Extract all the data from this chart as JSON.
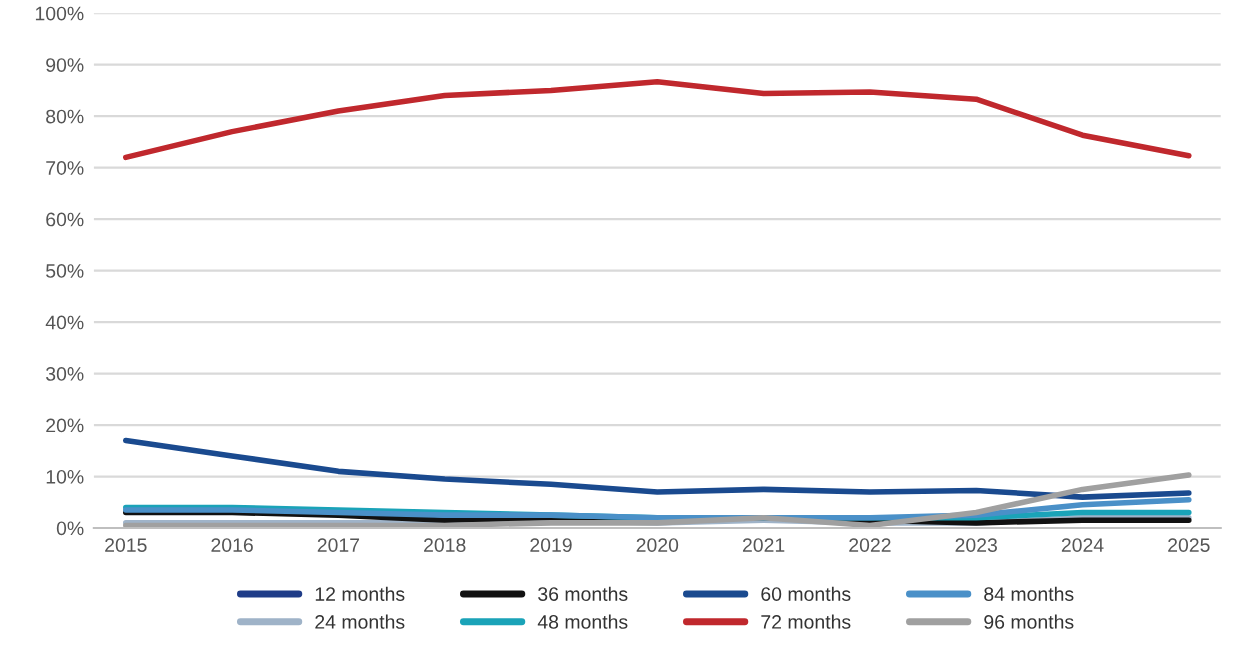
{
  "chart_data": {
    "type": "line",
    "x": [
      2015,
      2016,
      2017,
      2018,
      2019,
      2020,
      2021,
      2022,
      2023,
      2024,
      2025
    ],
    "xlim": [
      2014.7,
      2025.3
    ],
    "xticks": [
      2015,
      2016,
      2017,
      2018,
      2019,
      2020,
      2021,
      2022,
      2023,
      2024,
      2025
    ],
    "ylim": [
      0,
      100
    ],
    "yticks": [
      {
        "value": 0,
        "label": "0%"
      },
      {
        "value": 10,
        "label": "10%"
      },
      {
        "value": 20,
        "label": "20%"
      },
      {
        "value": 30,
        "label": "30%"
      },
      {
        "value": 40,
        "label": "40%"
      },
      {
        "value": 50,
        "label": "50%"
      },
      {
        "value": 60,
        "label": "60%"
      },
      {
        "value": 70,
        "label": "70%"
      },
      {
        "value": 80,
        "label": "80%"
      },
      {
        "value": 90,
        "label": "90%"
      },
      {
        "value": 100,
        "label": "100%"
      }
    ],
    "grid": "y",
    "legend": "bottom",
    "line_style": "solid",
    "series": [
      {
        "name": "12 months",
        "color": "#1f3c88",
        "values": [
          null,
          null,
          null,
          null,
          null,
          null,
          null,
          null,
          null,
          null,
          null
        ]
      },
      {
        "name": "24 months",
        "color": "#9fb3c8",
        "values": [
          1,
          1,
          1,
          1,
          1.5,
          1,
          1.5,
          1,
          1,
          2,
          2
        ]
      },
      {
        "name": "36 months",
        "color": "#111111",
        "values": [
          3,
          3,
          2.5,
          1.5,
          2,
          2,
          2,
          1.5,
          1,
          1.5,
          1.5
        ]
      },
      {
        "name": "48 months",
        "color": "#1aa3b8",
        "values": [
          4,
          4,
          3.5,
          3,
          2.5,
          2,
          2,
          2,
          2,
          3,
          3
        ]
      },
      {
        "name": "60 months",
        "color": "#1a4a8f",
        "values": [
          17,
          14,
          11,
          9.5,
          8.5,
          7,
          7.5,
          7,
          7.3,
          6,
          6.8
        ]
      },
      {
        "name": "72 months",
        "color": "#c0282d",
        "values": [
          72,
          77,
          81,
          84,
          85,
          86.7,
          84.4,
          84.7,
          83.3,
          76.3,
          72.3
        ]
      },
      {
        "name": "84 months",
        "color": "#4a90c8",
        "values": [
          3.5,
          3.5,
          3,
          2.5,
          2.5,
          2,
          2,
          2,
          2.5,
          4.5,
          5.5
        ]
      },
      {
        "name": "96 months",
        "color": "#a0a0a0",
        "values": [
          0.5,
          0.5,
          0.5,
          0.5,
          1,
          1,
          2,
          0.5,
          3,
          7.5,
          10.3
        ]
      }
    ]
  }
}
